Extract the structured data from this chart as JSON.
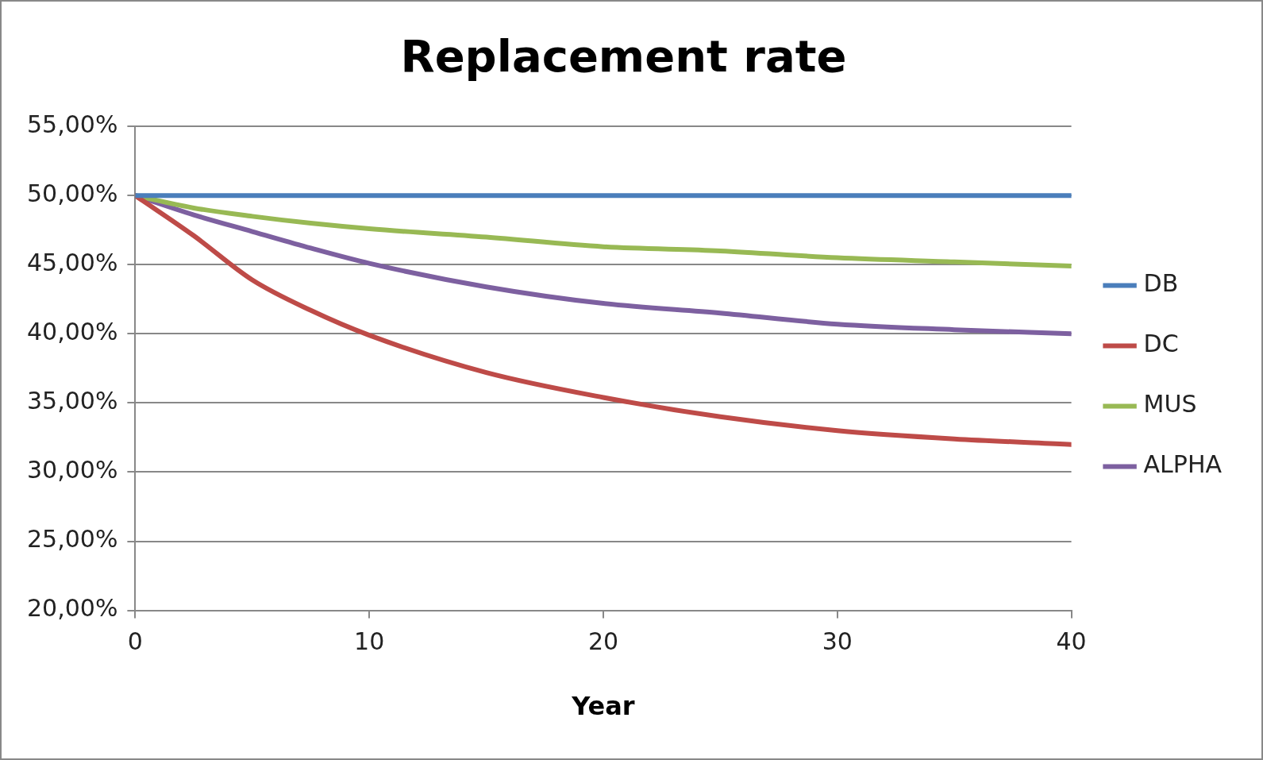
{
  "chart_data": {
    "type": "line",
    "title": "Replacement rate",
    "xlabel": "Year",
    "x": [
      0,
      2.5,
      5,
      7.5,
      10,
      15,
      20,
      25,
      30,
      35,
      40
    ],
    "series": [
      {
        "name": "DB",
        "color": "#4a7ebb",
        "values": [
          50,
          50,
          50,
          50,
          50,
          50,
          50,
          50,
          50,
          50,
          50
        ]
      },
      {
        "name": "DC",
        "color": "#be4b48",
        "values": [
          50,
          47.1,
          43.9,
          41.7,
          39.9,
          37.2,
          35.4,
          34.0,
          33.0,
          32.4,
          32.0
        ]
      },
      {
        "name": "MUS",
        "color": "#98b954",
        "values": [
          50,
          49.1,
          48.5,
          48.0,
          47.6,
          47.0,
          46.3,
          46.0,
          45.5,
          45.2,
          44.9
        ]
      },
      {
        "name": "ALPHA",
        "color": "#7d60a0",
        "values": [
          50,
          48.6,
          47.4,
          46.2,
          45.1,
          43.4,
          42.2,
          41.5,
          40.7,
          40.3,
          40.0
        ]
      }
    ],
    "xlim": [
      0,
      40
    ],
    "xticks": [
      0,
      10,
      20,
      30,
      40
    ],
    "ylim": [
      20,
      55
    ],
    "yticks": [
      {
        "value": 20,
        "label": "20,00%"
      },
      {
        "value": 25,
        "label": "25,00%"
      },
      {
        "value": 30,
        "label": "30,00%"
      },
      {
        "value": 35,
        "label": "35,00%"
      },
      {
        "value": 40,
        "label": "40,00%"
      },
      {
        "value": 45,
        "label": "45,00%"
      },
      {
        "value": 50,
        "label": "50,00%"
      },
      {
        "value": 55,
        "label": "55,00%"
      }
    ],
    "grid": "y",
    "legend": "right",
    "marker": "none",
    "line_style": "solid"
  }
}
